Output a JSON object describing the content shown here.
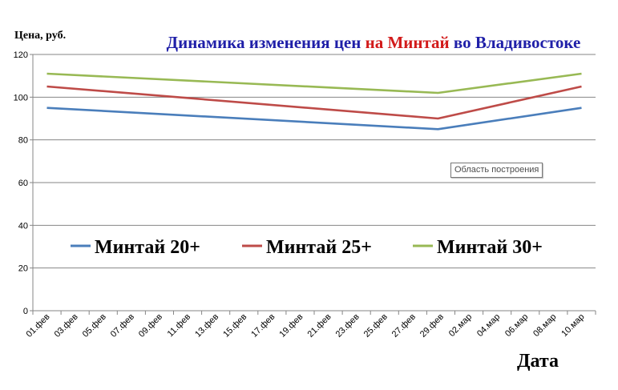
{
  "chart_data": {
    "type": "line",
    "title_parts": [
      {
        "text": "Динамика изменения цен ",
        "color": "#1f1fa8"
      },
      {
        "text": "на Минтай",
        "color": "#d21a1a"
      },
      {
        "text": " во Владивостоке",
        "color": "#1f1fa8"
      }
    ],
    "ylabel": "Цена, руб.",
    "xlabel": "Дата",
    "ylim": [
      0,
      120
    ],
    "yticks": [
      0,
      20,
      40,
      60,
      80,
      100,
      120
    ],
    "categories": [
      "01.фев",
      "03.фев",
      "05.фев",
      "07.фев",
      "09.фев",
      "11.фев",
      "13.фев",
      "15.фев",
      "17.фев",
      "19.фев",
      "21.фев",
      "23.фев",
      "25.фев",
      "27.фев",
      "29.фев",
      "02.мар",
      "04.мар",
      "06.мар",
      "08.мар",
      "10.мар"
    ],
    "series": [
      {
        "name": "Минтай 20+",
        "color": "#4a7ebb",
        "points": [
          {
            "i": 0,
            "v": 95
          },
          {
            "i": 13.9,
            "v": 85
          },
          {
            "i": 19,
            "v": 95
          }
        ]
      },
      {
        "name": "Минтай 25+",
        "color": "#be4b48",
        "points": [
          {
            "i": 0,
            "v": 105
          },
          {
            "i": 13.9,
            "v": 90
          },
          {
            "i": 19,
            "v": 105
          }
        ]
      },
      {
        "name": "Минтай 30+",
        "color": "#98b954",
        "points": [
          {
            "i": 0,
            "v": 111
          },
          {
            "i": 13.9,
            "v": 102
          },
          {
            "i": 19,
            "v": 111
          }
        ]
      }
    ],
    "grid": true,
    "legend_position": "center-bottom-inside"
  },
  "tooltip": {
    "text": "Область построения"
  }
}
